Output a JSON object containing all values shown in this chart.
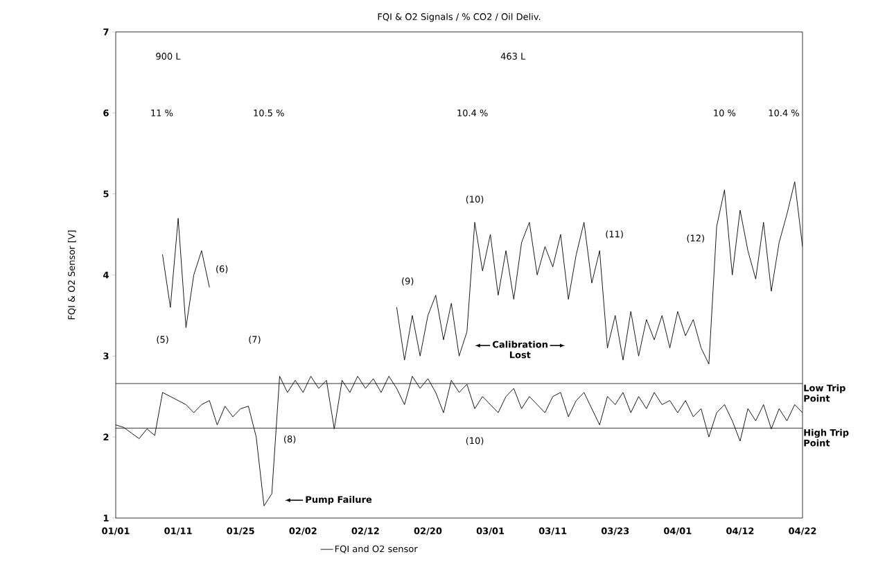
{
  "chart_data": {
    "type": "line",
    "title": "FQI & O2  Signals / % CO2 / Oil Deliv.",
    "ylabel": "FQI & O2 Sensor [V]",
    "categories": [
      "01/01",
      null,
      null,
      null,
      null,
      null,
      null,
      null,
      "01/11",
      null,
      null,
      null,
      null,
      null,
      null,
      null,
      "01/25",
      null,
      null,
      null,
      null,
      null,
      null,
      null,
      "02/02",
      null,
      null,
      null,
      null,
      null,
      null,
      null,
      "02/12",
      null,
      null,
      null,
      null,
      null,
      null,
      null,
      "02/20",
      null,
      null,
      null,
      null,
      null,
      null,
      null,
      "03/01",
      null,
      null,
      null,
      null,
      null,
      null,
      null,
      "03/11",
      null,
      null,
      null,
      null,
      null,
      null,
      null,
      "03/23",
      null,
      null,
      null,
      null,
      null,
      null,
      null,
      "04/01",
      null,
      null,
      null,
      null,
      null,
      null,
      null,
      "04/12",
      null,
      null,
      null,
      null,
      null,
      null,
      null,
      "04/22"
    ],
    "ylim": [
      1,
      7
    ],
    "yticks": [
      1,
      2,
      3,
      4,
      5,
      6,
      7
    ],
    "grid": false,
    "legend": "bottom",
    "marker": "none",
    "line_style": "solid",
    "series": [
      {
        "name": "FQI and O2 sensor",
        "color": "#000000",
        "values": [
          2.15,
          2.12,
          2.05,
          1.98,
          2.1,
          2.02,
          2.55,
          2.5,
          2.45,
          2.4,
          2.3,
          2.4,
          2.45,
          2.15,
          2.38,
          2.25,
          2.35,
          2.38,
          2.0,
          1.15,
          1.3,
          2.75,
          2.55,
          2.7,
          2.55,
          2.75,
          2.6,
          2.7,
          2.1,
          2.7,
          2.55,
          2.75,
          2.6,
          2.72,
          2.55,
          2.75,
          2.6,
          2.4,
          2.75,
          2.6,
          2.72,
          2.55,
          2.3,
          2.7,
          2.55,
          2.65,
          2.35,
          2.5,
          2.4,
          2.3,
          2.5,
          2.6,
          2.35,
          2.5,
          2.4,
          2.3,
          2.5,
          2.55,
          2.25,
          2.45,
          2.55,
          2.35,
          2.15,
          2.5,
          2.4,
          2.55,
          2.3,
          2.5,
          2.35,
          2.55,
          2.4,
          2.45,
          2.3,
          2.45,
          2.25,
          2.35,
          2.0,
          2.3,
          2.4,
          2.2,
          1.95,
          2.35,
          2.2,
          2.4,
          2.1,
          2.35,
          2.2,
          2.4,
          2.3
        ]
      },
      {
        "color": "#000000",
        "values": [
          null,
          null,
          null,
          null,
          null,
          null,
          4.25,
          3.6,
          4.7,
          3.35,
          4.0,
          4.3,
          3.85,
          null,
          null,
          null,
          null,
          null,
          null,
          null,
          null,
          null,
          null,
          null,
          null,
          null,
          null,
          null,
          null,
          null,
          null,
          null,
          null,
          null,
          null,
          null,
          3.6,
          2.95,
          3.5,
          3.0,
          3.5,
          3.75,
          3.2,
          3.65,
          3.0,
          3.3,
          4.65,
          4.05,
          4.5,
          3.75,
          4.3,
          3.7,
          4.4,
          4.65,
          4.0,
          4.35,
          4.1,
          4.5,
          3.7,
          4.25,
          4.65,
          3.9,
          4.3,
          3.1,
          3.5,
          2.95,
          3.55,
          3.0,
          3.45,
          3.2,
          3.5,
          3.1,
          3.55,
          3.25,
          3.45,
          3.1,
          2.9,
          4.6,
          5.05,
          4.0,
          4.8,
          4.3,
          3.95,
          4.65,
          3.8,
          4.4,
          4.75,
          5.15,
          4.35
        ]
      }
    ],
    "ref_lines": [
      {
        "axis": "y",
        "value": 2.66,
        "label": "Low Trip Point",
        "color": "#000000"
      },
      {
        "axis": "y",
        "value": 2.11,
        "label": "High Trip Point",
        "color": "#000000"
      }
    ],
    "annotations": [
      "900 L",
      "463 L",
      "11 %",
      "10.5 %",
      "10.4 %",
      "10 %",
      "10.4 %",
      "(5)",
      "(6)",
      "(7)",
      "(8)",
      "(9)",
      "(10)",
      "(10)",
      "(11)",
      "(12)",
      "Calibration Lost",
      "Pump Failure"
    ]
  }
}
